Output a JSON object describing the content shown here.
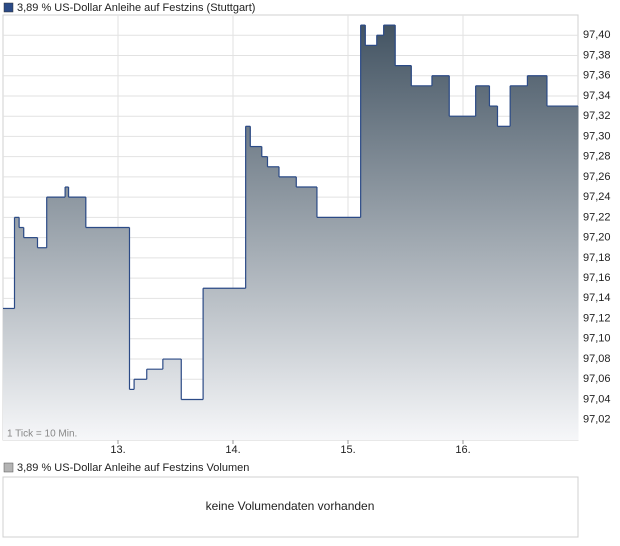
{
  "chart_data": [
    {
      "type": "step-area",
      "title": "3,89 % US-Dollar Anleihe auf Festzins (Stuttgart)",
      "color": "#2b4a86",
      "fill_top": "#3f505f",
      "fill_bottom": "#f6f7f9",
      "note": "1 Tick = 10 Min.",
      "grid": true,
      "x": [
        12.0,
        12.1,
        12.14,
        12.18,
        12.3,
        12.38,
        12.54,
        12.57,
        12.72,
        13.1,
        13.14,
        13.25,
        13.39,
        13.55,
        13.74,
        14.11,
        14.15,
        14.25,
        14.3,
        14.4,
        14.55,
        14.73,
        15.11,
        15.15,
        15.25,
        15.31,
        15.41,
        15.55,
        15.73,
        15.88,
        16.11,
        16.23,
        16.3,
        16.41,
        16.56,
        16.73
      ],
      "values": [
        97.13,
        97.22,
        97.21,
        97.2,
        97.19,
        97.24,
        97.25,
        97.24,
        97.21,
        97.05,
        97.06,
        97.07,
        97.08,
        97.04,
        97.15,
        97.31,
        97.29,
        97.28,
        97.27,
        97.26,
        97.25,
        97.22,
        97.41,
        97.39,
        97.4,
        97.41,
        97.37,
        97.35,
        97.36,
        97.32,
        97.35,
        97.33,
        97.31,
        97.35,
        97.36,
        97.33
      ],
      "xlim": [
        12,
        17
      ],
      "xticks": [
        {
          "value": 13,
          "label": "13."
        },
        {
          "value": 14,
          "label": "14."
        },
        {
          "value": 15,
          "label": "15."
        },
        {
          "value": 16,
          "label": "16."
        }
      ],
      "ylim": [
        97.0,
        97.42
      ],
      "yticks": [
        {
          "value": 97.02,
          "label": "97,02"
        },
        {
          "value": 97.04,
          "label": "97,04"
        },
        {
          "value": 97.06,
          "label": "97,06"
        },
        {
          "value": 97.08,
          "label": "97,08"
        },
        {
          "value": 97.1,
          "label": "97,10"
        },
        {
          "value": 97.12,
          "label": "97,12"
        },
        {
          "value": 97.14,
          "label": "97,14"
        },
        {
          "value": 97.16,
          "label": "97,16"
        },
        {
          "value": 97.18,
          "label": "97,18"
        },
        {
          "value": 97.2,
          "label": "97,20"
        },
        {
          "value": 97.22,
          "label": "97,22"
        },
        {
          "value": 97.24,
          "label": "97,24"
        },
        {
          "value": 97.26,
          "label": "97,26"
        },
        {
          "value": 97.28,
          "label": "97,28"
        },
        {
          "value": 97.3,
          "label": "97,30"
        },
        {
          "value": 97.32,
          "label": "97,32"
        },
        {
          "value": 97.34,
          "label": "97,34"
        },
        {
          "value": 97.36,
          "label": "97,36"
        },
        {
          "value": 97.38,
          "label": "97,38"
        },
        {
          "value": 97.4,
          "label": "97,40"
        }
      ]
    },
    {
      "type": "volume",
      "title": "3,89 % US-Dollar Anleihe auf Festzins Volumen",
      "color": "#b4b4b4",
      "message": "keine Volumendaten vorhanden"
    }
  ]
}
